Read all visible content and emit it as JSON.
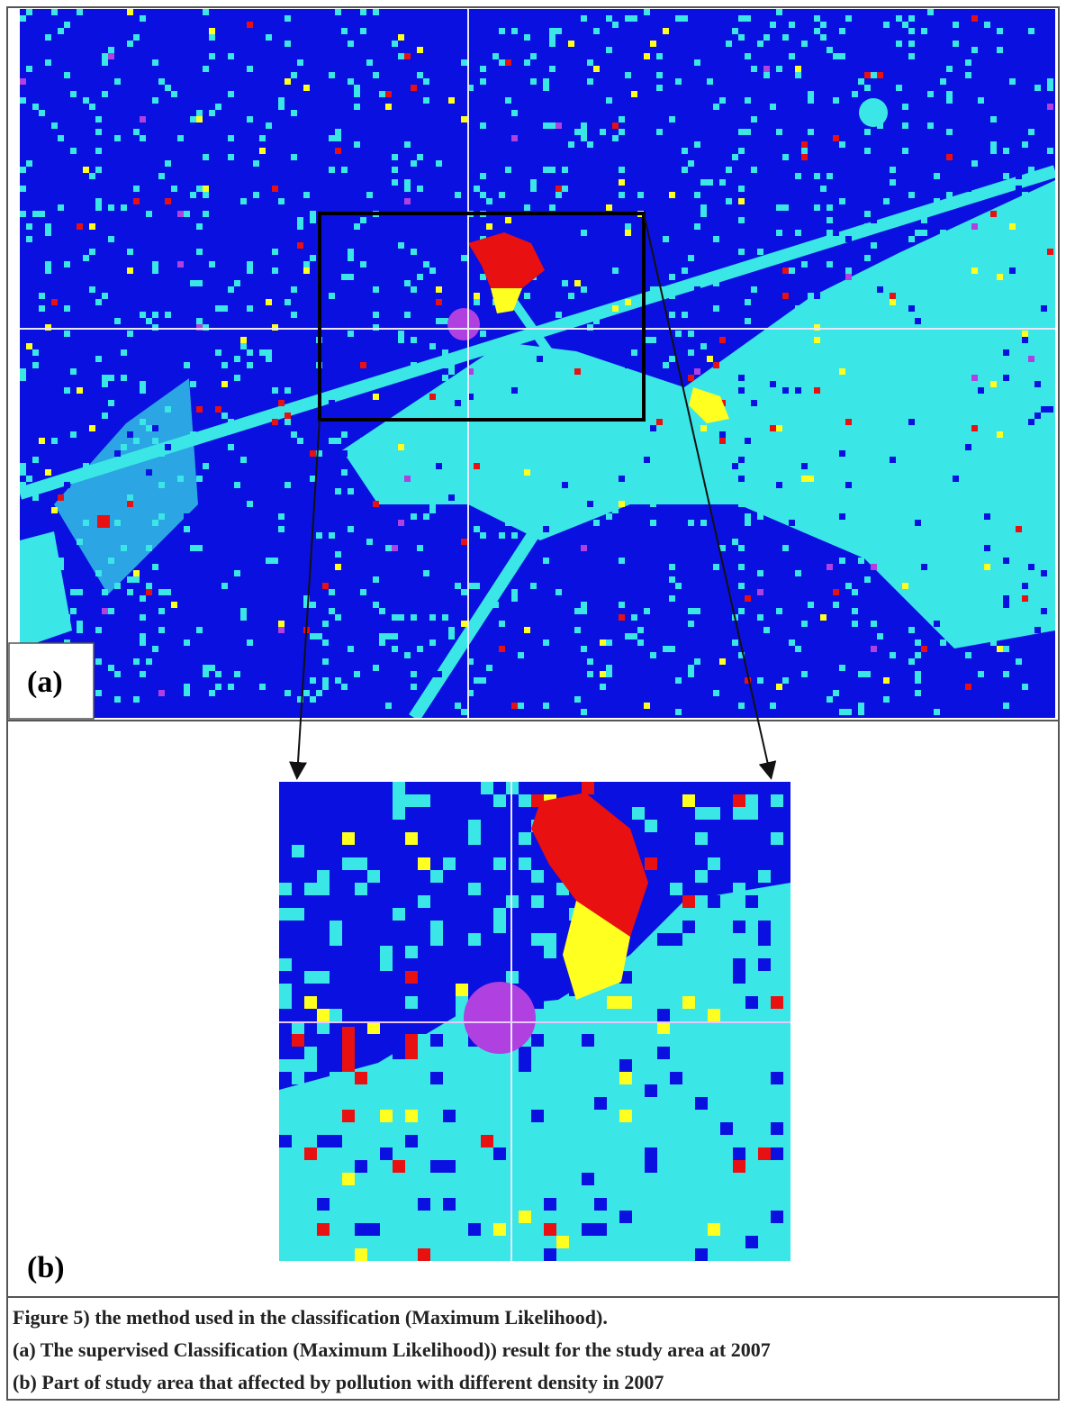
{
  "panels": {
    "a": {
      "label": "(a)"
    },
    "b": {
      "label": "(b)"
    }
  },
  "caption": {
    "lines": [
      "Figure 5) the method used in the classification (Maximum Likelihood).",
      "(a) The supervised Classification (Maximum Likelihood)) result for the study area at 2007",
      "(b) Part of study area that affected by pollution with different density in 2007"
    ]
  }
}
